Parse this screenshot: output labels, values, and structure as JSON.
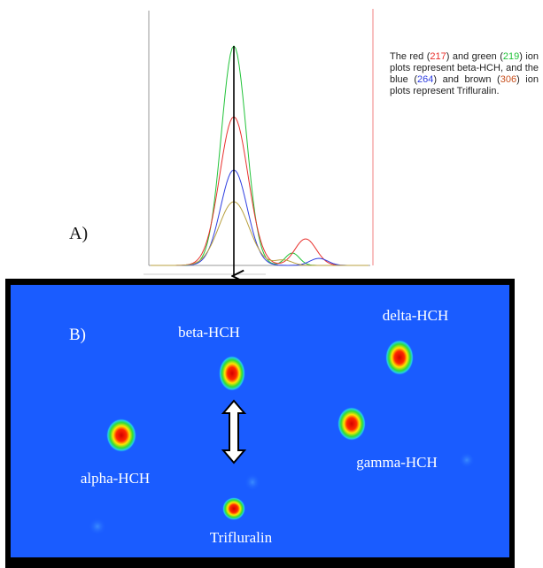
{
  "panel_a": {
    "label": "A)",
    "note": [
      {
        "text": "The red ("
      },
      {
        "text": "217",
        "color": "#e8302c"
      },
      {
        "text": ") and green ("
      },
      {
        "text": "219",
        "color": "#22c33a"
      },
      {
        "text": ") ion plots represent beta-HCH, and the blue ("
      },
      {
        "text": "264",
        "color": "#2f3fe0"
      },
      {
        "text": ") and brown ("
      },
      {
        "text": "306",
        "color": "#c8501e"
      },
      {
        "text": ") ion plots represent Trifluralin."
      }
    ]
  },
  "panel_b": {
    "label": "B)",
    "compounds": [
      {
        "name": "beta-HCH"
      },
      {
        "name": "delta-HCH"
      },
      {
        "name": "alpha-HCH"
      },
      {
        "name": "gamma-HCH"
      },
      {
        "name": "Trifluralin"
      }
    ]
  }
}
